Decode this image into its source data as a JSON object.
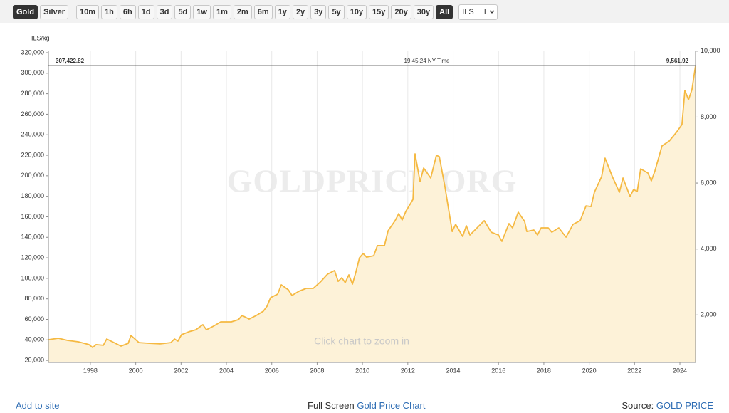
{
  "toolbar": {
    "metals": [
      {
        "label": "Gold",
        "selected": true
      },
      {
        "label": "Silver",
        "selected": false
      }
    ],
    "ranges": [
      {
        "label": "10m",
        "selected": false
      },
      {
        "label": "1h",
        "selected": false
      },
      {
        "label": "6h",
        "selected": false
      },
      {
        "label": "1d",
        "selected": false
      },
      {
        "label": "3d",
        "selected": false
      },
      {
        "label": "5d",
        "selected": false
      },
      {
        "label": "1w",
        "selected": false
      },
      {
        "label": "1m",
        "selected": false
      },
      {
        "label": "2m",
        "selected": false
      },
      {
        "label": "6m",
        "selected": false
      },
      {
        "label": "1y",
        "selected": false
      },
      {
        "label": "2y",
        "selected": false
      },
      {
        "label": "3y",
        "selected": false
      },
      {
        "label": "5y",
        "selected": false
      },
      {
        "label": "10y",
        "selected": false
      },
      {
        "label": "15y",
        "selected": false
      },
      {
        "label": "20y",
        "selected": false
      },
      {
        "label": "30y",
        "selected": false
      },
      {
        "label": "All",
        "selected": true
      }
    ],
    "currency": "ILS",
    "unit": "I"
  },
  "chart_data": {
    "type": "area",
    "y_label": "ILS/kg",
    "watermark": "GOLDPRICE.ORG",
    "hint": "Click chart to zoom in",
    "time": "19:45:24 NY Time",
    "current_price": {
      "value": 307422.82,
      "label": "307,422.82"
    },
    "current_price_y2": {
      "value": 9561.92,
      "label": "9,561.92"
    },
    "color": "#f5b942",
    "fill": "#fdf2d8",
    "xgrid": true,
    "x": [
      1996.15,
      1996.59,
      1996.99,
      1997.47,
      1997.94,
      1998.1,
      1998.25,
      1998.57,
      1998.72,
      1999.04,
      1999.35,
      1999.67,
      1999.79,
      2000.14,
      2000.61,
      2001.08,
      2001.55,
      2001.71,
      2001.86,
      2002.02,
      2002.34,
      2002.65,
      2002.96,
      2003.12,
      2003.43,
      2003.75,
      2004.22,
      2004.53,
      2004.69,
      2005.0,
      2005.32,
      2005.63,
      2005.79,
      2005.95,
      2006.26,
      2006.42,
      2006.73,
      2006.89,
      2007.2,
      2007.52,
      2007.83,
      2008.14,
      2008.46,
      2008.77,
      2008.93,
      2009.09,
      2009.24,
      2009.4,
      2009.56,
      2009.71,
      2009.87,
      2010.03,
      2010.18,
      2010.5,
      2010.66,
      2010.97,
      2011.13,
      2011.44,
      2011.6,
      2011.75,
      2011.91,
      2012.23,
      2012.32,
      2012.54,
      2012.7,
      2013.01,
      2013.26,
      2013.39,
      2013.64,
      2013.96,
      2014.11,
      2014.42,
      2014.58,
      2014.74,
      2015.37,
      2015.68,
      2016.0,
      2016.15,
      2016.46,
      2016.62,
      2016.87,
      2017.15,
      2017.25,
      2017.56,
      2017.72,
      2017.88,
      2018.19,
      2018.35,
      2018.66,
      2018.98,
      2019.29,
      2019.6,
      2019.86,
      2020.08,
      2020.23,
      2020.55,
      2020.7,
      2021.02,
      2021.33,
      2021.49,
      2021.8,
      2021.96,
      2022.12,
      2022.27,
      2022.59,
      2022.74,
      2022.9,
      2023.21,
      2023.53,
      2023.84,
      2024.09,
      2024.22,
      2024.38,
      2024.53,
      2024.69
    ],
    "values": [
      40200,
      41600,
      39500,
      38100,
      35400,
      32600,
      35400,
      34700,
      40900,
      37400,
      34000,
      36700,
      44400,
      37400,
      36700,
      36100,
      37400,
      40900,
      38800,
      45100,
      47900,
      49900,
      54800,
      49900,
      53400,
      57600,
      57600,
      59700,
      63800,
      60300,
      63800,
      68000,
      72800,
      81200,
      84600,
      93700,
      88800,
      83300,
      87400,
      90200,
      90200,
      96400,
      104100,
      107600,
      97100,
      100600,
      95800,
      103400,
      94400,
      106200,
      120100,
      124200,
      120700,
      122100,
      131900,
      131900,
      146400,
      156200,
      163100,
      156900,
      165200,
      177000,
      221400,
      194300,
      207500,
      197800,
      220000,
      218600,
      188800,
      145700,
      152700,
      140900,
      151300,
      142300,
      156200,
      145000,
      142300,
      136000,
      153400,
      149200,
      164500,
      155500,
      145700,
      147100,
      142300,
      149200,
      149200,
      145000,
      149200,
      140200,
      152700,
      156200,
      170700,
      170000,
      183900,
      199200,
      217200,
      199200,
      183900,
      197800,
      179800,
      186700,
      184600,
      206800,
      202700,
      195000,
      204800,
      229100,
      233900,
      242200,
      249900,
      283200,
      274200,
      283900,
      307422.82
    ],
    "xlim": [
      1996.15,
      2024.69
    ],
    "xticks": [
      1998,
      2000,
      2002,
      2004,
      2006,
      2008,
      2010,
      2012,
      2014,
      2016,
      2018,
      2020,
      2022,
      2024
    ],
    "ylim": [
      18000,
      320000
    ],
    "yticks": [
      {
        "value": 20000,
        "label": "20,000"
      },
      {
        "value": 40000,
        "label": "40,000"
      },
      {
        "value": 60000,
        "label": "60,000"
      },
      {
        "value": 80000,
        "label": "80,000"
      },
      {
        "value": 100000,
        "label": "100,000"
      },
      {
        "value": 120000,
        "label": "120,000"
      },
      {
        "value": 140000,
        "label": "140,000"
      },
      {
        "value": 160000,
        "label": "160,000"
      },
      {
        "value": 180000,
        "label": "180,000"
      },
      {
        "value": 200000,
        "label": "200,000"
      },
      {
        "value": 220000,
        "label": "220,000"
      },
      {
        "value": 240000,
        "label": "240,000"
      },
      {
        "value": 260000,
        "label": "260,000"
      },
      {
        "value": 280000,
        "label": "280,000"
      },
      {
        "value": 300000,
        "label": "300,000"
      },
      {
        "value": 320000,
        "label": "320,000"
      }
    ],
    "y2lim": [
      560,
      9953
    ],
    "y2ticks": [
      {
        "value": 2000,
        "label": "2,000"
      },
      {
        "value": 4000,
        "label": "4,000"
      },
      {
        "value": 6000,
        "label": "6,000"
      },
      {
        "value": 8000,
        "label": "8,000"
      },
      {
        "value": 10000,
        "label": "10,000"
      }
    ]
  },
  "footer": {
    "add_to_site": "Add to site",
    "full_screen": "Full Screen",
    "chart_link": "Gold Price Chart",
    "source_label": "Source:",
    "source_link": "GOLD PRICE"
  }
}
